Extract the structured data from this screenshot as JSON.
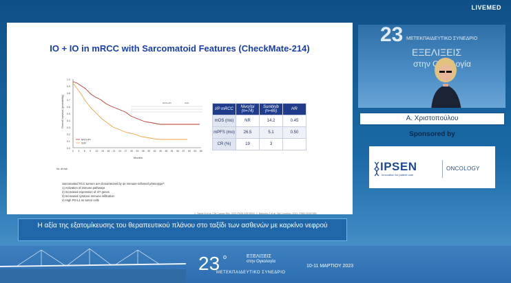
{
  "brand": "LIVEMED",
  "slide": {
    "title": "IO + IO in mRCC with Sarcomatoid Features (CheckMate-214)",
    "km": {
      "y_label": "Overall survival (probability)",
      "x_label": "Months",
      "legend_nivo": "NIVO+IPI",
      "legend_sun": "SUN",
      "risk_label": "No. at risk",
      "colors": {
        "nivo": "#b33a2a",
        "sun": "#f0a33c"
      }
    },
    "table": {
      "headers": [
        "I/P mRCC",
        "Nivo/Ipi (n=74)",
        "Sunitinib (n=65)",
        "HR"
      ],
      "rows": [
        [
          "mOS (mo)",
          "NR",
          "14.2",
          "0.45"
        ],
        [
          "mPFS (mo)",
          "26.5",
          "5.1",
          "0.50"
        ],
        [
          "CR (%)",
          "19",
          "3",
          ""
        ]
      ]
    },
    "notes": {
      "head": "Sarcomatoid RCC tumors are characterized by an immune-inflamed phenotype³:",
      "items": [
        "1)   Activation of immune pathways",
        "2)   Increased expression of 4/7 genes",
        "3)   Increased cytotoxic immune infiltration",
        "4)   High PD-L1 on tumor cells"
      ]
    },
    "reference": "1. Tannir N et al. Clin Cancer Res. 2021;PMID:32878903; 2. Bakouny Z et al. Nat Commun. 2021; PMID:33397986"
  },
  "video": {
    "number": "23",
    "conference": "ΜΕΤΕΚΠΑΙΔΕΥΤΙΚΟ ΣΥΝΕΔΡΙΟ",
    "word1": "ΕΞΕΛΙΞΕΙΣ",
    "word2": "στην Ογκολογία"
  },
  "speaker": "Α. Χριστοπούλου",
  "sponsored_label": "Sponsored by",
  "sponsor": {
    "name": "IPSEN",
    "tagline": "Innovation for patient care",
    "division": "ONCOLOGY",
    "color": "#1d4a91"
  },
  "caption": "Η αξία της εξατομίκευσης του θεραπευτικού πλάνου στο ταξίδι των ασθενών με καρκίνο νεφρού",
  "banner": {
    "number": "23",
    "sup": "ο",
    "name1": "ΕΞΕΛΙΞΕΙΣ",
    "name2": "στην Ογκολογία",
    "conference": "ΜΕΤΕΚΠΑΙΔΕΥΤΙΚΟ ΣΥΝΕΔΡΙΟ",
    "dates": "10-11 ΜΑΡΤΙΟΥ 2023"
  }
}
